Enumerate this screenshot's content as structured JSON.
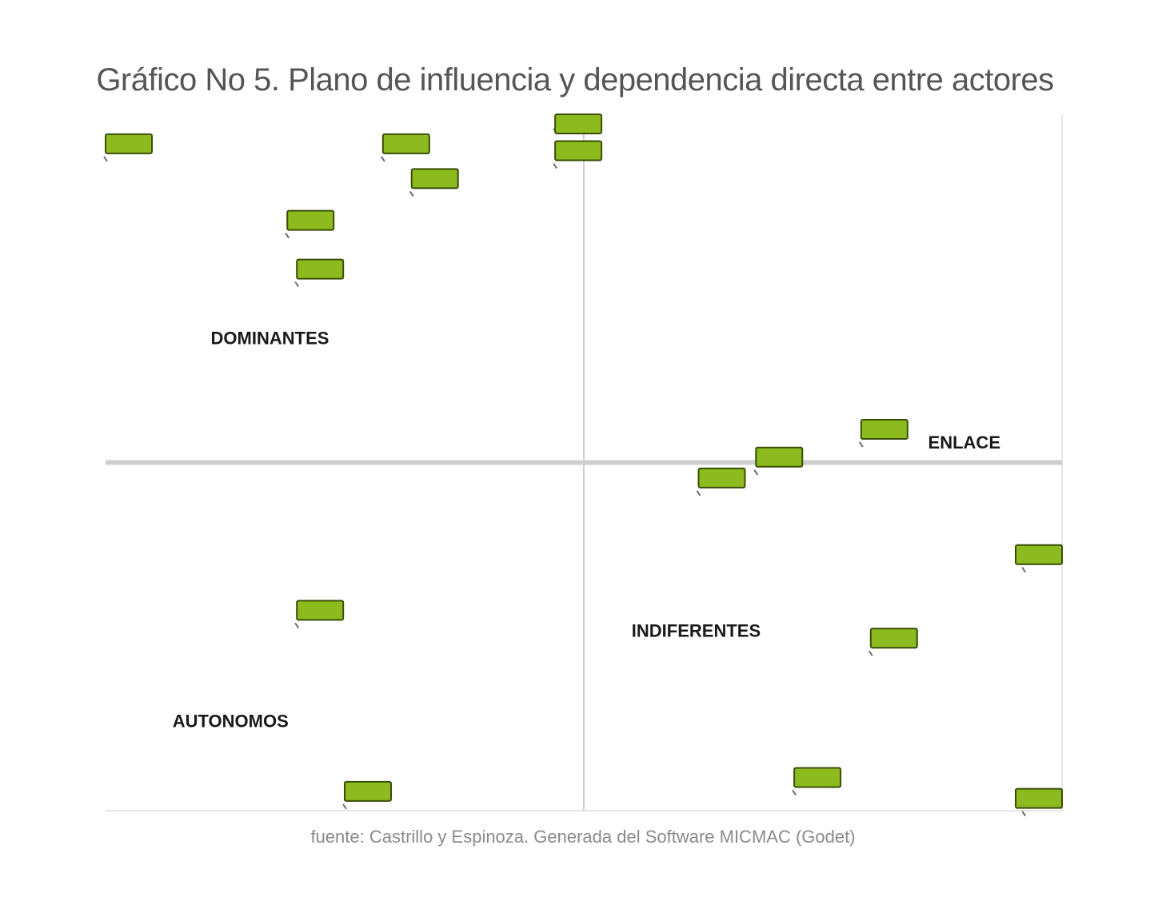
{
  "title": "Gráfico No 5. Plano de influencia y dependencia directa entre actores",
  "source": "fuente: Castrillo y Espinoza. Generada del Software MICMAC (Godet)",
  "colors": {
    "label_fill": "#8dba1e",
    "label_stroke": "#3a4f08",
    "axis": "#cfcfcf",
    "frame": "#e6e6e6"
  },
  "chart_data": {
    "type": "scatter",
    "title": "Gráfico No 5. Plano de influencia y dependencia directa entre actores",
    "xlabel": "",
    "ylabel": "",
    "xlim": [
      0,
      1
    ],
    "ylim": [
      0,
      1
    ],
    "grid": false,
    "quadrants": [
      {
        "name": "DOMINANTES",
        "x": 0.11,
        "y": 0.67
      },
      {
        "name": "ENLACE",
        "x": 0.86,
        "y": 0.52
      },
      {
        "name": "INDIFERENTES",
        "x": 0.55,
        "y": 0.25
      },
      {
        "name": "AUTONOMOS",
        "x": 0.07,
        "y": 0.12
      }
    ],
    "points": [
      {
        "x": 0.0,
        "y": 0.96,
        "label": ""
      },
      {
        "x": 0.29,
        "y": 0.96,
        "label": ""
      },
      {
        "x": 0.47,
        "y": 1.0,
        "label": ""
      },
      {
        "x": 0.47,
        "y": 0.95,
        "label": ""
      },
      {
        "x": 0.32,
        "y": 0.91,
        "label": ""
      },
      {
        "x": 0.19,
        "y": 0.85,
        "label": ""
      },
      {
        "x": 0.2,
        "y": 0.78,
        "label": ""
      },
      {
        "x": 0.79,
        "y": 0.55,
        "label": ""
      },
      {
        "x": 0.68,
        "y": 0.51,
        "label": ""
      },
      {
        "x": 0.62,
        "y": 0.48,
        "label": ""
      },
      {
        "x": 0.96,
        "y": 0.37,
        "label": ""
      },
      {
        "x": 0.2,
        "y": 0.29,
        "label": ""
      },
      {
        "x": 0.8,
        "y": 0.25,
        "label": ""
      },
      {
        "x": 0.72,
        "y": 0.05,
        "label": ""
      },
      {
        "x": 0.25,
        "y": 0.03,
        "label": ""
      },
      {
        "x": 0.96,
        "y": 0.02,
        "label": ""
      }
    ],
    "axis_lines": {
      "x": 0.5,
      "y": 0.5
    }
  }
}
